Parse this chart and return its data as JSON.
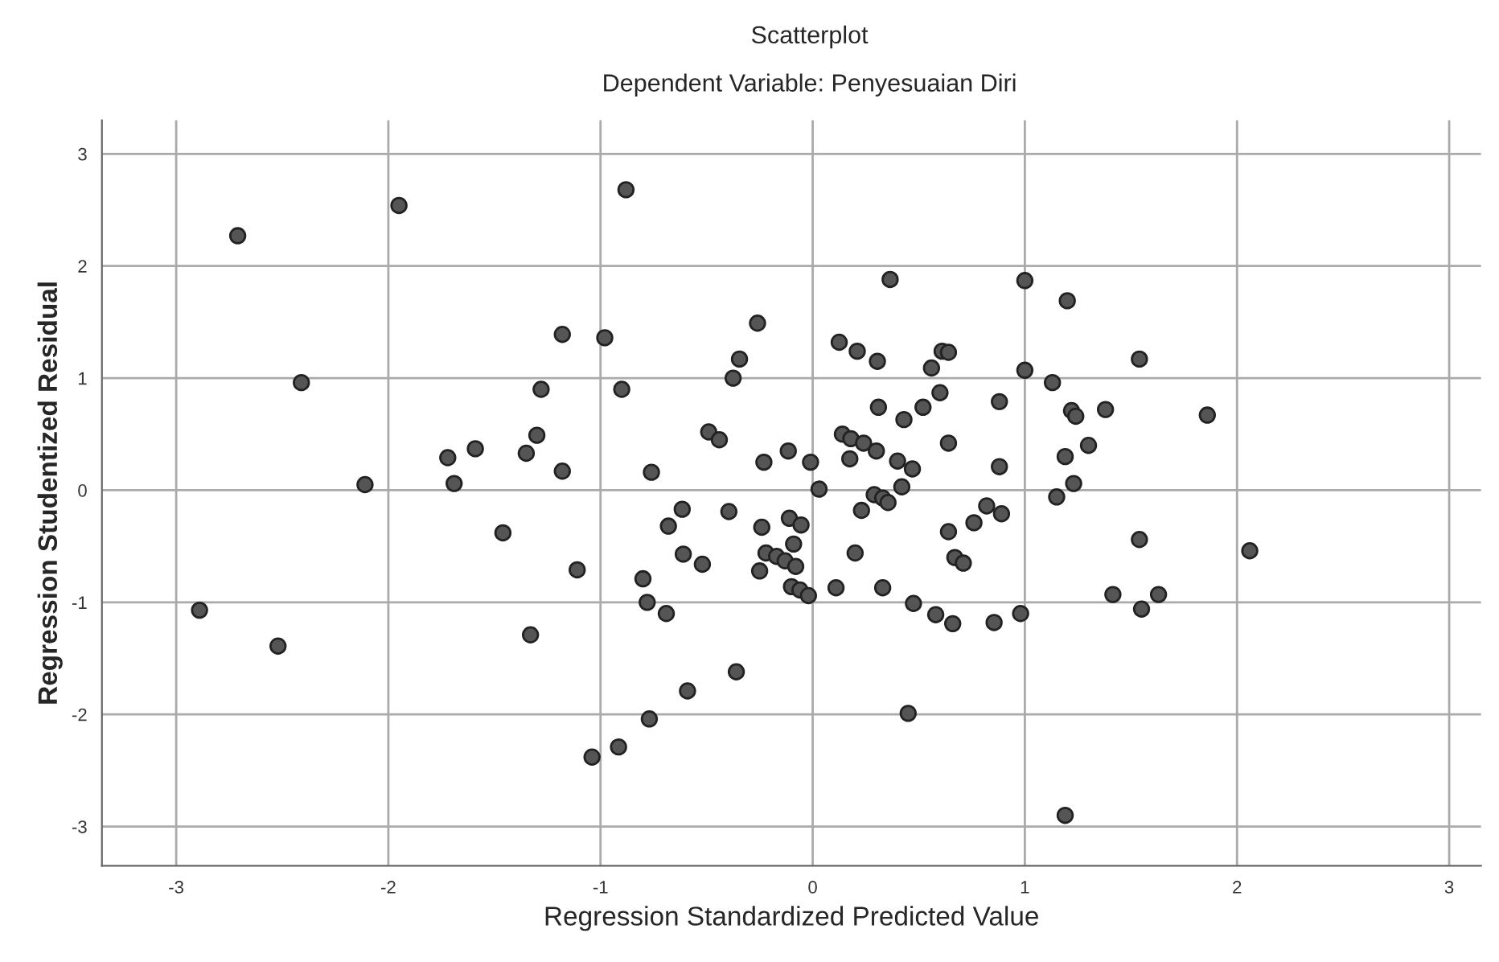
{
  "chart_data": {
    "type": "scatter",
    "title": "Scatterplot",
    "subtitle": "Dependent Variable: Penyesuaian Diri",
    "xlabel": "Regression Standardized Predicted Value",
    "ylabel": "Regression Studentized Residual",
    "xlim": [
      -3.35,
      3.15
    ],
    "ylim": [
      -3.35,
      3.3
    ],
    "xticks": [
      -3,
      -2,
      -1,
      0,
      1,
      2,
      3
    ],
    "yticks": [
      -3,
      -2,
      -1,
      0,
      1,
      2,
      3
    ],
    "grid": true,
    "marker": "circle",
    "series": [
      {
        "color": "#555555",
        "x": [
          -2.71,
          -1.95,
          -1.18,
          -2.41,
          -1.28,
          -1.3,
          -1.72,
          -1.59,
          -1.35,
          -1.18,
          -2.11,
          -1.69,
          -1.46,
          -1.11,
          -2.89,
          -2.52,
          -1.33,
          -0.88,
          0.365,
          1.0,
          -0.98,
          -0.26,
          -0.345,
          -0.375,
          -0.9,
          0.125,
          0.21,
          0.305,
          0.61,
          0.64,
          0.56,
          0.6,
          0.52,
          0.31,
          0.43,
          0.88,
          1.0,
          -0.49,
          -0.44,
          0.14,
          0.18,
          0.24,
          0.3,
          0.175,
          0.4,
          0.47,
          0.64,
          -0.115,
          -0.23,
          -0.01,
          0.88,
          -0.76,
          0.03,
          0.42,
          0.29,
          0.33,
          0.355,
          0.23,
          0.82,
          0.89,
          0.76,
          0.64,
          0.67,
          0.71,
          -0.615,
          -0.395,
          -0.68,
          -0.24,
          -0.11,
          -0.055,
          -0.09,
          -0.22,
          -0.17,
          -0.13,
          -0.08,
          -0.61,
          -0.52,
          -0.25,
          0.2,
          -0.1,
          -0.06,
          -0.02,
          0.11,
          0.33,
          -0.8,
          -0.78,
          -0.69,
          0.475,
          0.58,
          0.66,
          0.855,
          0.98,
          -0.36,
          -0.59,
          -0.77,
          0.45,
          -0.915,
          -1.04,
          1.2,
          1.54,
          1.13,
          1.22,
          1.24,
          1.38,
          1.86,
          1.3,
          1.19,
          1.23,
          1.15,
          1.54,
          2.06,
          1.415,
          1.63,
          1.55,
          1.19
        ],
        "values": [
          2.27,
          2.54,
          1.39,
          0.96,
          0.9,
          0.49,
          0.29,
          0.37,
          0.33,
          0.17,
          0.05,
          0.06,
          -0.38,
          -0.71,
          -1.07,
          -1.39,
          -1.29,
          2.68,
          1.88,
          1.87,
          1.36,
          1.49,
          1.17,
          1.0,
          0.9,
          1.32,
          1.24,
          1.15,
          1.24,
          1.23,
          1.09,
          0.87,
          0.74,
          0.74,
          0.63,
          0.79,
          1.07,
          0.52,
          0.45,
          0.5,
          0.46,
          0.42,
          0.35,
          0.28,
          0.26,
          0.19,
          0.42,
          0.35,
          0.25,
          0.25,
          0.21,
          0.16,
          0.01,
          0.03,
          -0.04,
          -0.07,
          -0.11,
          -0.18,
          -0.14,
          -0.21,
          -0.29,
          -0.37,
          -0.6,
          -0.65,
          -0.17,
          -0.19,
          -0.32,
          -0.33,
          -0.25,
          -0.31,
          -0.48,
          -0.56,
          -0.59,
          -0.63,
          -0.68,
          -0.57,
          -0.66,
          -0.72,
          -0.56,
          -0.86,
          -0.89,
          -0.94,
          -0.87,
          -0.87,
          -0.79,
          -1.0,
          -1.1,
          -1.01,
          -1.11,
          -1.19,
          -1.18,
          -1.1,
          -1.62,
          -1.79,
          -2.04,
          -1.99,
          -2.29,
          -2.38,
          1.69,
          1.17,
          0.96,
          0.71,
          0.66,
          0.72,
          0.67,
          0.4,
          0.3,
          0.06,
          -0.06,
          -0.44,
          -0.54,
          -0.93,
          -0.93,
          -1.06,
          -2.9
        ]
      }
    ]
  }
}
